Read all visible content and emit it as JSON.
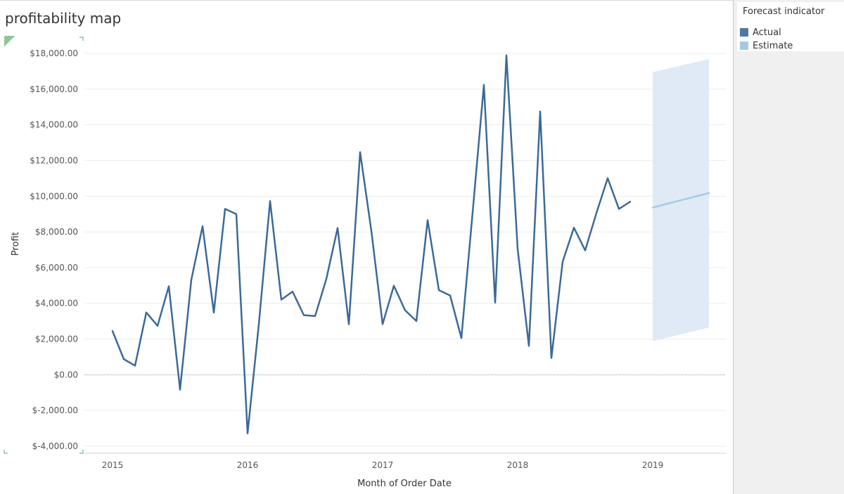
{
  "title": "profitability map",
  "legend": {
    "title": "Forecast indicator",
    "items": [
      {
        "label": "Actual",
        "color": "#4e79a7"
      },
      {
        "label": "Estimate",
        "color": "#a0cbe8"
      }
    ]
  },
  "colors": {
    "actual": "#3c6a98",
    "estimate": "#a0cbe8",
    "band": "#dfeaf6",
    "grid": "#ececec",
    "zero_line": "#9a9a9a",
    "panel": "#f0f0f0"
  },
  "chart_data": {
    "type": "line",
    "xlabel": "Month of Order Date",
    "ylabel": "Profit",
    "x_ticks": [
      "2015",
      "2016",
      "2017",
      "2018",
      "2019"
    ],
    "y_ticks": [
      "$18,000.00",
      "$16,000.00",
      "$14,000.00",
      "$12,000.00",
      "$10,000.00",
      "$8,000.00",
      "$6,000.00",
      "$4,000.00",
      "$2,000.00",
      "$0.00",
      "$-2,000.00",
      "$-4,000.00"
    ],
    "ylim": [
      -4000,
      18000
    ],
    "grid": true,
    "legend_position": "top-right",
    "series": [
      {
        "name": "Actual",
        "x": [
          "2015-01",
          "2015-02",
          "2015-03",
          "2015-04",
          "2015-05",
          "2015-06",
          "2015-07",
          "2015-08",
          "2015-09",
          "2015-10",
          "2015-11",
          "2015-12",
          "2016-01",
          "2016-02",
          "2016-03",
          "2016-04",
          "2016-05",
          "2016-06",
          "2016-07",
          "2016-08",
          "2016-09",
          "2016-10",
          "2016-11",
          "2016-12",
          "2017-01",
          "2017-02",
          "2017-03",
          "2017-04",
          "2017-05",
          "2017-06",
          "2017-07",
          "2017-08",
          "2017-09",
          "2017-10",
          "2017-11",
          "2017-12",
          "2018-01",
          "2018-02",
          "2018-03",
          "2018-04",
          "2018-05",
          "2018-06",
          "2018-07",
          "2018-08",
          "2018-09",
          "2018-10",
          "2018-11",
          "2018-12"
        ],
        "values": [
          2450,
          880,
          510,
          3490,
          2740,
          4960,
          -830,
          5320,
          8320,
          3480,
          9290,
          9000,
          -3280,
          2830,
          9730,
          4210,
          4660,
          3340,
          3290,
          5370,
          8220,
          2830,
          12470,
          8060,
          2840,
          4990,
          3610,
          3010,
          8660,
          4740,
          4440,
          2060,
          9100,
          16240,
          4040,
          17890,
          7050,
          1620,
          14750,
          940,
          6340,
          8240,
          6970,
          9060,
          11010,
          9290,
          9690,
          null
        ]
      },
      {
        "name": "Estimate",
        "x": [
          "2019-01",
          "2019-06"
        ],
        "values": [
          9370,
          10180
        ],
        "upper": [
          16950,
          17680
        ],
        "lower": [
          1880,
          2650
        ]
      }
    ]
  }
}
